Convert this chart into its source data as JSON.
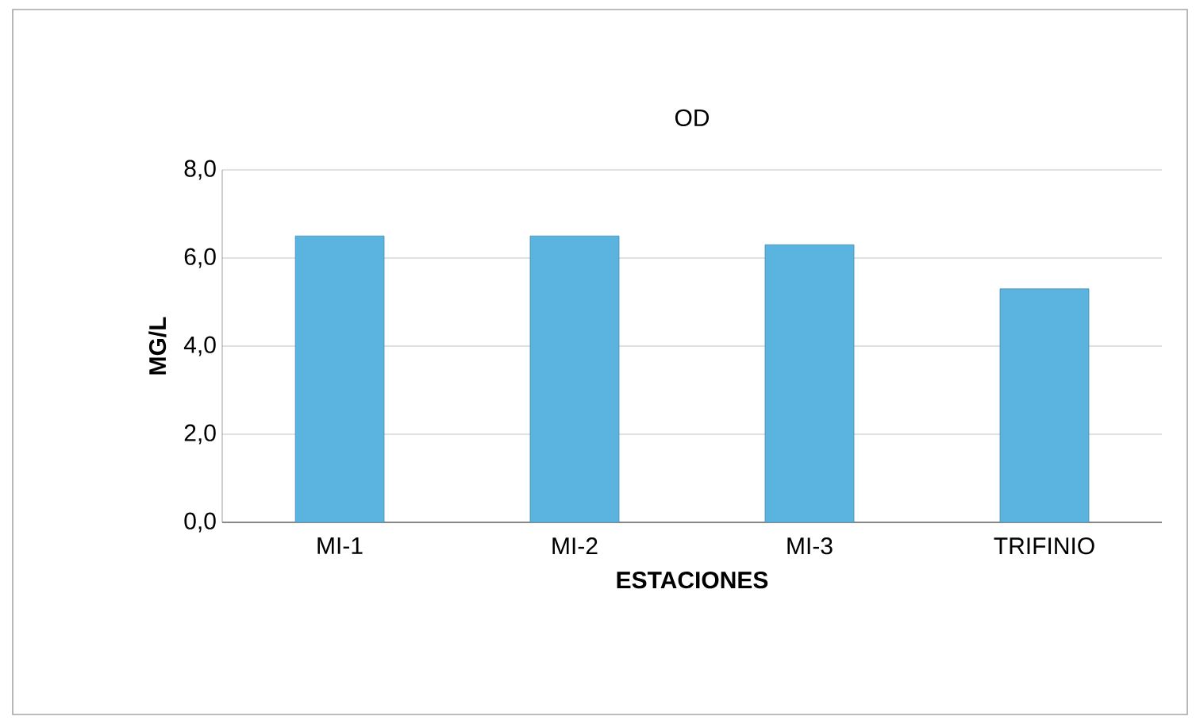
{
  "chart_data": {
    "type": "bar",
    "title": "OD",
    "xlabel": "ESTACIONES",
    "ylabel": "MG/L",
    "categories": [
      "MI-1",
      "MI-2",
      "MI-3",
      "TRIFINIO"
    ],
    "values": [
      6.5,
      6.5,
      6.3,
      5.3
    ],
    "color": "#5bb3e0",
    "ylim": [
      0,
      8
    ],
    "yticks": [
      {
        "value": 0,
        "label": "0,0"
      },
      {
        "value": 2,
        "label": "2,0"
      },
      {
        "value": 4,
        "label": "4,0"
      },
      {
        "value": 6,
        "label": "6,0"
      },
      {
        "value": 8,
        "label": "8,0"
      }
    ],
    "grid": "y"
  }
}
